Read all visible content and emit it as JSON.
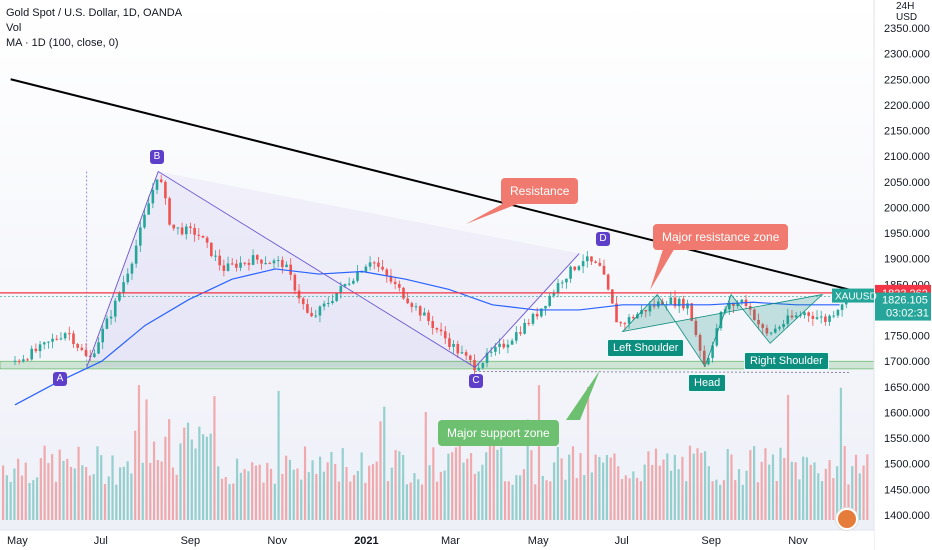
{
  "legend": {
    "title": "Gold Spot / U.S. Dollar, 1D, OANDA",
    "vol": "Vol",
    "ma": "MA · 1D (100, close, 0)"
  },
  "currency": {
    "top": "24H",
    "unit": "USD"
  },
  "chart_data": {
    "type": "candlestick",
    "symbol": "XAUUSD",
    "y_ticks": [
      "2350.000",
      "2300.000",
      "2250.000",
      "2200.000",
      "2150.000",
      "2100.000",
      "2050.000",
      "2000.000",
      "1950.000",
      "1900.000",
      "1850.000",
      "1800.000",
      "1750.000",
      "1700.000",
      "1650.000",
      "1600.000",
      "1550.000",
      "1500.000",
      "1450.000",
      "1400.000"
    ],
    "y_tick_values": [
      2350,
      2300,
      2250,
      2200,
      2150,
      2100,
      2050,
      2000,
      1950,
      1900,
      1850,
      1800,
      1750,
      1700,
      1650,
      1600,
      1550,
      1500,
      1450,
      1400
    ],
    "ylim": [
      1380,
      2400
    ],
    "x_ticks": [
      "May",
      "Jul",
      "Sep",
      "Nov",
      "2021",
      "Mar",
      "May",
      "Jul",
      "Sep",
      "Nov"
    ],
    "x_tick_months": [
      0,
      2,
      4,
      6,
      8,
      10,
      12,
      14,
      16,
      18
    ],
    "x_range_months": [
      0,
      19.4
    ],
    "price_path": [
      [
        0,
        1700
      ],
      [
        0.6,
        1725
      ],
      [
        1.2,
        1760
      ],
      [
        1.7,
        1700
      ],
      [
        2.3,
        1810
      ],
      [
        2.7,
        1900
      ],
      [
        3.3,
        2070
      ],
      [
        3.6,
        1960
      ],
      [
        4.2,
        1950
      ],
      [
        4.8,
        1880
      ],
      [
        5.5,
        1900
      ],
      [
        6.2,
        1890
      ],
      [
        6.8,
        1780
      ],
      [
        7.5,
        1840
      ],
      [
        8.2,
        1900
      ],
      [
        8.5,
        1870
      ],
      [
        9.4,
        1790
      ],
      [
        10.2,
        1720
      ],
      [
        10.6,
        1690
      ],
      [
        11.3,
        1735
      ],
      [
        12.0,
        1790
      ],
      [
        12.6,
        1860
      ],
      [
        13.1,
        1900
      ],
      [
        13.5,
        1880
      ],
      [
        13.9,
        1770
      ],
      [
        14.5,
        1800
      ],
      [
        15.0,
        1820
      ],
      [
        15.5,
        1810
      ],
      [
        15.9,
        1690
      ],
      [
        16.3,
        1800
      ],
      [
        16.8,
        1820
      ],
      [
        17.3,
        1750
      ],
      [
        17.8,
        1780
      ],
      [
        18.2,
        1795
      ],
      [
        18.7,
        1780
      ],
      [
        19.2,
        1830
      ]
    ],
    "ma_path": [
      [
        0,
        1615
      ],
      [
        1,
        1660
      ],
      [
        2,
        1700
      ],
      [
        3,
        1770
      ],
      [
        4,
        1820
      ],
      [
        5,
        1860
      ],
      [
        6,
        1880
      ],
      [
        7,
        1870
      ],
      [
        8,
        1875
      ],
      [
        9,
        1860
      ],
      [
        10,
        1840
      ],
      [
        11,
        1810
      ],
      [
        12,
        1800
      ],
      [
        13,
        1800
      ],
      [
        14,
        1810
      ],
      [
        15,
        1810
      ],
      [
        16,
        1810
      ],
      [
        17,
        1815
      ],
      [
        18,
        1810
      ],
      [
        19,
        1810
      ]
    ],
    "trendline": [
      [
        -0.1,
        2250
      ],
      [
        19.3,
        1838
      ]
    ],
    "resistance_level": 1833.262,
    "support_zone": [
      1685,
      1700
    ],
    "current_price": 1826.105,
    "countdown": "03:02:31",
    "resistance_label": "1833.262",
    "price_label": "1826.105",
    "points": [
      {
        "label": "A",
        "x": 1.65,
        "y": 1688
      },
      {
        "label": "B",
        "x": 3.3,
        "y": 2070
      },
      {
        "label": "C",
        "x": 10.6,
        "y": 1688
      },
      {
        "label": "D",
        "x": 13.0,
        "y": 1910
      }
    ],
    "annotations": {
      "resistance": "Resistance",
      "major_resistance": "Major resistance zone",
      "major_support": "Major support zone",
      "left_shoulder": "Left Shoulder",
      "head": "Head",
      "right_shoulder": "Right Shoulder"
    }
  },
  "colors": {
    "up": "#26a69a",
    "down": "#ef5350",
    "ma": "#2962ff",
    "trend": "#000000",
    "resistance": "#f23645",
    "support": "#4caf50",
    "pattern": "#5e3fc9"
  }
}
